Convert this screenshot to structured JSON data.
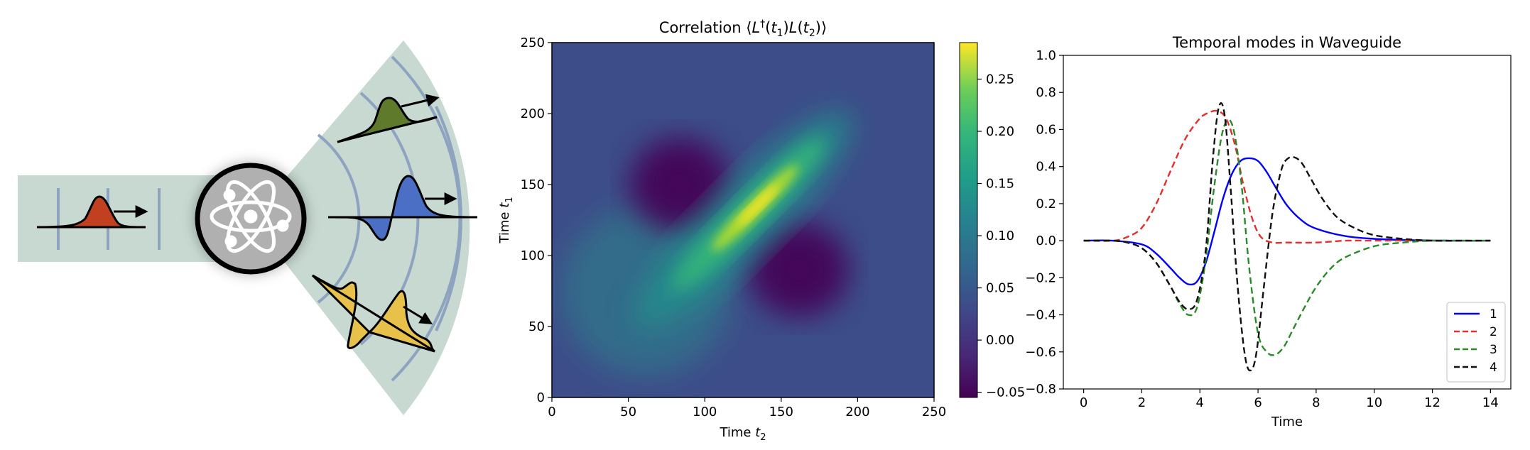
{
  "illustration": {
    "incoming_pulse_color": "#c0401f",
    "emitted_pulse_colors": [
      "#5e7a2a",
      "#4a6fc4",
      "#e8c14a"
    ],
    "waveguide_color": "#c7d9d0",
    "wavefront_color": "#8da3bf",
    "emitter_icon": "atom-icon"
  },
  "heatmap": {
    "title": "Correlation ⟨L†(t1)L(t2)⟩",
    "title_parts": {
      "pre": "Correlation ⟨",
      "L1": "L",
      "dag": "†",
      "p1": "(",
      "t1": "t",
      "s1": "1",
      "p2": ")",
      "L2": "L",
      "p3": "(",
      "t2": "t",
      "s2": "2",
      "p4": ")⟩"
    },
    "xlabel": "Time t2",
    "xlabel_parts": {
      "main": "Time ",
      "var": "t",
      "sub": "2"
    },
    "ylabel": "Time t1",
    "ylabel_parts": {
      "main": "Time ",
      "var": "t",
      "sub": "1"
    },
    "xticks": [
      "0",
      "50",
      "100",
      "150",
      "200",
      "250"
    ],
    "yticks": [
      "0",
      "50",
      "100",
      "150",
      "200",
      "250"
    ],
    "colorbar_ticks": [
      "−0.05",
      "0.00",
      "0.05",
      "0.10",
      "0.15",
      "0.20",
      "0.25"
    ],
    "colormap": "viridis"
  },
  "chart_data": [
    {
      "type": "heatmap",
      "title": "Correlation ⟨L†(t1)L(t2)⟩",
      "xlabel": "Time t2",
      "ylabel": "Time t1",
      "xlim": [
        0,
        250
      ],
      "ylim": [
        0,
        250
      ],
      "colorbar_range": [
        -0.055,
        0.285
      ],
      "features": [
        {
          "kind": "diagonal-ridge-peak",
          "t1": 135,
          "t2": 135,
          "value": 0.285
        },
        {
          "kind": "negative-lobe",
          "t1": 150,
          "t2": 85,
          "value": -0.05
        },
        {
          "kind": "negative-lobe",
          "t1": 85,
          "t2": 150,
          "value": -0.05
        }
      ]
    },
    {
      "type": "line",
      "title": "Temporal modes in Waveguide",
      "xlabel": "Time",
      "ylabel": "",
      "xlim": [
        -0.7,
        14.7
      ],
      "ylim": [
        -0.8,
        1.0
      ],
      "xticks": [
        "0",
        "2",
        "4",
        "6",
        "8",
        "10",
        "12",
        "14"
      ],
      "yticks": [
        "−0.8",
        "−0.6",
        "−0.4",
        "−0.2",
        "0.0",
        "0.2",
        "0.4",
        "0.6",
        "0.8",
        "1.0"
      ],
      "legend": "lower-right",
      "series": [
        {
          "name": "1",
          "color": "#0000ff",
          "style": "solid",
          "x": [
            0,
            1,
            2,
            2.5,
            3,
            3.3,
            3.6,
            3.9,
            4.2,
            4.5,
            4.8,
            5.1,
            5.4,
            5.7,
            6.0,
            6.3,
            6.6,
            7,
            7.5,
            8,
            9,
            10,
            11,
            12,
            13,
            14
          ],
          "y": [
            0,
            0,
            -0.02,
            -0.07,
            -0.15,
            -0.2,
            -0.235,
            -0.22,
            -0.12,
            0.05,
            0.23,
            0.36,
            0.43,
            0.445,
            0.43,
            0.37,
            0.29,
            0.19,
            0.11,
            0.065,
            0.025,
            0.01,
            0.004,
            0.001,
            0,
            0
          ]
        },
        {
          "name": "2",
          "color": "#e03030",
          "style": "dashed",
          "x": [
            0,
            1,
            1.5,
            2,
            2.5,
            3,
            3.5,
            4,
            4.3,
            4.6,
            4.9,
            5.2,
            5.5,
            5.8,
            6.1,
            6.5,
            7,
            8,
            9,
            10,
            11,
            12,
            13,
            14
          ],
          "y": [
            0,
            0,
            0.02,
            0.07,
            0.2,
            0.38,
            0.55,
            0.66,
            0.69,
            0.7,
            0.66,
            0.52,
            0.3,
            0.12,
            0.02,
            -0.01,
            -0.01,
            -0.01,
            0,
            0,
            0,
            0,
            0,
            0
          ]
        },
        {
          "name": "3",
          "color": "#2a8a2a",
          "style": "dashed",
          "x": [
            0,
            1,
            1.5,
            2,
            2.5,
            3,
            3.3,
            3.6,
            3.9,
            4.2,
            4.5,
            4.8,
            5.1,
            5.4,
            5.7,
            6.0,
            6.3,
            6.6,
            6.9,
            7.2,
            7.6,
            8,
            8.5,
            9,
            10,
            11,
            12,
            13,
            14
          ],
          "y": [
            0,
            0,
            -0.01,
            -0.04,
            -0.12,
            -0.25,
            -0.34,
            -0.4,
            -0.36,
            -0.1,
            0.3,
            0.6,
            0.63,
            0.35,
            -0.15,
            -0.5,
            -0.6,
            -0.615,
            -0.57,
            -0.48,
            -0.36,
            -0.25,
            -0.15,
            -0.09,
            -0.03,
            -0.01,
            0,
            0,
            0
          ]
        },
        {
          "name": "4",
          "color": "#111111",
          "style": "dashed",
          "x": [
            0,
            1,
            1.5,
            2,
            2.5,
            3,
            3.3,
            3.6,
            3.9,
            4.2,
            4.45,
            4.65,
            4.85,
            5.05,
            5.3,
            5.55,
            5.75,
            5.95,
            6.2,
            6.5,
            6.8,
            7.0,
            7.25,
            7.5,
            7.8,
            8.2,
            8.7,
            9.3,
            10,
            11,
            12,
            13,
            14
          ],
          "y": [
            0,
            0,
            -0.01,
            -0.04,
            -0.12,
            -0.25,
            -0.33,
            -0.37,
            -0.32,
            -0.05,
            0.45,
            0.72,
            0.68,
            0.3,
            -0.25,
            -0.62,
            -0.7,
            -0.6,
            -0.25,
            0.15,
            0.38,
            0.44,
            0.45,
            0.42,
            0.34,
            0.23,
            0.13,
            0.07,
            0.03,
            0.01,
            0,
            0,
            0
          ]
        }
      ]
    }
  ],
  "linechart": {
    "title": "Temporal modes in Waveguide",
    "xlabel": "Time",
    "legend_labels": [
      "1",
      "2",
      "3",
      "4"
    ]
  }
}
